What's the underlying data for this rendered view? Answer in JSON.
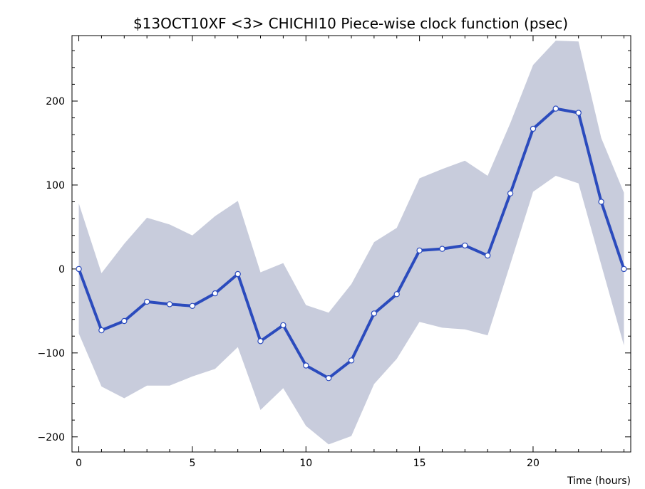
{
  "chart_data": {
    "type": "line",
    "title": "$13OCT10XF <3>  CHICHI10  Piece-wise clock function (psec)",
    "xlabel": "Time (hours)",
    "ylabel": "",
    "xlim": [
      -0.3,
      24.3
    ],
    "ylim": [
      -218,
      278
    ],
    "x_ticks": [
      0,
      5,
      10,
      15,
      20
    ],
    "y_ticks": [
      -200,
      -100,
      0,
      100,
      200
    ],
    "grid": false,
    "legend": "none",
    "colors": {
      "line": "#2b4bbd",
      "band": "#c8ccdc",
      "marker_fill": "#ffffff",
      "marker_edge": "#2b4bbd",
      "frame": "#000000"
    },
    "series": [
      {
        "x": [
          0,
          1,
          2,
          3,
          4,
          5,
          6,
          7,
          8,
          9,
          10,
          11,
          12,
          13,
          14,
          15,
          16,
          17,
          18,
          19,
          20,
          21,
          22,
          23,
          24
        ],
        "y": [
          0,
          -73,
          -62,
          -39,
          -42,
          -44,
          -29,
          -6,
          -86,
          -67,
          -115,
          -130,
          -109,
          -53,
          -30,
          22,
          24,
          28,
          16,
          90,
          167,
          191,
          186,
          80,
          0
        ],
        "upper": [
          78,
          -5,
          30,
          61,
          53,
          40,
          63,
          81,
          -4,
          7,
          -43,
          -52,
          -18,
          32,
          49,
          108,
          119,
          129,
          111,
          174,
          243,
          272,
          271,
          156,
          91
        ],
        "lower": [
          -77,
          -140,
          -154,
          -139,
          -139,
          -128,
          -119,
          -93,
          -168,
          -142,
          -187,
          -209,
          -199,
          -137,
          -107,
          -63,
          -70,
          -72,
          -79,
          6,
          92,
          111,
          102,
          5,
          -91
        ]
      }
    ]
  }
}
